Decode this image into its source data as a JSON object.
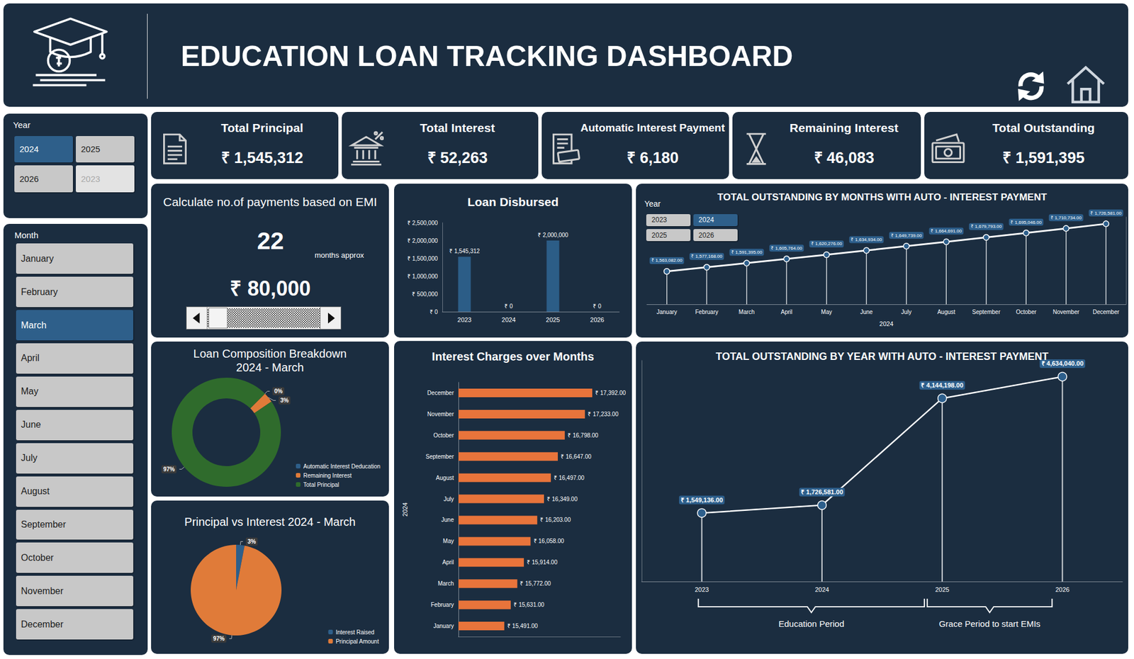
{
  "header": {
    "title": "EDUCATION LOAN TRACKING DASHBOARD"
  },
  "year_slicer": {
    "title": "Year",
    "items": [
      "2024",
      "2025",
      "2026",
      "2023"
    ],
    "selected": [
      "2024"
    ],
    "disabled": [
      "2023"
    ]
  },
  "month_slicer": {
    "title": "Month",
    "items": [
      "January",
      "February",
      "March",
      "April",
      "May",
      "June",
      "July",
      "August",
      "September",
      "October",
      "November",
      "December"
    ],
    "selected": [
      "March"
    ]
  },
  "kpis": [
    {
      "title": "Total Principal",
      "value": "₹ 1,545,312"
    },
    {
      "title": "Total Interest",
      "value": "₹ 52,263"
    },
    {
      "title": "Automatic Interest Payment",
      "value": "₹ 6,180"
    },
    {
      "title": "Remaining Interest",
      "value": "₹ 46,083"
    },
    {
      "title": "Total Outstanding",
      "value": "₹ 1,591,395"
    }
  ],
  "emi_calculator": {
    "title": "Calculate no.of payments based on EMI",
    "payments": 22,
    "payments_unit": "months approx",
    "emi": "₹ 80,000"
  },
  "chart_data": [
    {
      "type": "bar",
      "title": "Loan Disbursed",
      "categories": [
        "2023",
        "2024",
        "2025",
        "2026"
      ],
      "values": [
        1545312,
        0,
        2000000,
        0
      ],
      "value_labels": [
        "₹ 1,545,312",
        "₹ 0",
        "₹ 2,000,000",
        "₹ 0"
      ],
      "color": "#2c5d87",
      "ylim": [
        0,
        2500000
      ],
      "yticks": [
        {
          "value": 0,
          "label": "₹ 0"
        },
        {
          "value": 500000,
          "label": "₹ 500,000"
        },
        {
          "value": 1000000,
          "label": "₹ 1,000,000"
        },
        {
          "value": 1500000,
          "label": "₹ 1,500,000"
        },
        {
          "value": 2000000,
          "label": "₹ 2,000,000"
        },
        {
          "value": 2500000,
          "label": "₹ 2,500,000"
        }
      ],
      "grid": false,
      "data_labels": true
    },
    {
      "type": "line",
      "title": "TOTAL OUTSTANDING BY MONTHS WITH AUTO - INTEREST PAYMENT",
      "slicer": {
        "title": "Year",
        "items": [
          "2023",
          "2024",
          "2025",
          "2026"
        ],
        "selected": [
          "2024"
        ]
      },
      "xlabel": "2024",
      "categories": [
        "January",
        "February",
        "March",
        "April",
        "May",
        "June",
        "July",
        "August",
        "September",
        "October",
        "November",
        "December"
      ],
      "values": [
        1563082,
        1577168,
        1591395,
        1605764,
        1620276,
        1634934,
        1649739,
        1664691,
        1679793,
        1695046,
        1710734,
        1726581
      ],
      "value_labels": [
        "₹ 1,563,082.00",
        "₹ 1,577,168.00",
        "₹ 1,591,395.00",
        "₹ 1,605,764.00",
        "₹ 1,620,276.00",
        "₹ 1,634,934.00",
        "₹ 1,649,739.00",
        "₹ 1,664,691.00",
        "₹ 1,679,793.00",
        "₹ 1,695,046.00",
        "₹ 1,710,734.00",
        "₹ 1,726,581.00"
      ],
      "color": "#ffffff",
      "marker": "circle",
      "ylim": [
        1450000,
        1750000
      ],
      "grid": false,
      "tick_labels": "x",
      "data_labels": true
    },
    {
      "type": "donut",
      "title": "Loan Composition Breakdown",
      "subtitle": "2024 - March",
      "categories": [
        "Automatic Interest Deducation",
        "Remaining Interest",
        "Total Principal"
      ],
      "values": [
        0,
        3,
        97
      ],
      "value_labels": [
        "0%",
        "3%",
        "97%"
      ],
      "colors": [
        "#2e5f8a",
        "#e07b39",
        "#2f6b2c"
      ],
      "legend": "lower right",
      "data_labels": true
    },
    {
      "type": "pie",
      "title": "Principal vs Interest 2024 - March",
      "categories": [
        "Interest Raised",
        "Principal Amount"
      ],
      "values": [
        3,
        97
      ],
      "value_labels": [
        "3%",
        "97%"
      ],
      "colors": [
        "#2e5f8a",
        "#e07b39"
      ],
      "legend": "lower right",
      "data_labels": true
    },
    {
      "type": "bar",
      "orientation": "horizontal",
      "title": "Interest Charges over Months",
      "ylabel": "2024",
      "categories": [
        "January",
        "February",
        "March",
        "April",
        "May",
        "June",
        "July",
        "August",
        "September",
        "October",
        "November",
        "December"
      ],
      "values": [
        15491,
        15631,
        15772,
        15914,
        16058,
        16203,
        16349,
        16497,
        16647,
        16798,
        17233,
        17392
      ],
      "value_labels": [
        "₹ 15,491.00",
        "₹ 15,631.00",
        "₹ 15,772.00",
        "₹ 15,914.00",
        "₹ 16,058.00",
        "₹ 16,203.00",
        "₹ 16,349.00",
        "₹ 16,497.00",
        "₹ 16,647.00",
        "₹ 16,798.00",
        "₹ 17,233.00",
        "₹ 17,392.00"
      ],
      "color": "#e8743b",
      "xlim": [
        14500,
        18000
      ],
      "grid": false,
      "tick_labels": "y",
      "data_labels": true
    },
    {
      "type": "line",
      "title": "TOTAL OUTSTANDING BY YEAR WITH AUTO - INTEREST PAYMENT",
      "categories": [
        "2023",
        "2024",
        "2025",
        "2026"
      ],
      "values": [
        1549136,
        1726581,
        4144198,
        4634040
      ],
      "value_labels": [
        "₹ 1,549,136.00",
        "₹ 1,726,581.00",
        "₹ 4,144,198.00",
        "₹ 4,634,040.00"
      ],
      "color": "#ffffff",
      "marker": "circle",
      "ylim": [
        0,
        5000000
      ],
      "grid": false,
      "tick_labels": "x",
      "data_labels": true,
      "annotations": [
        {
          "text": "Education Period",
          "from": "2023",
          "to": "2025"
        },
        {
          "text": "Grace Period to start EMIs",
          "from": "2025",
          "to": "2026"
        }
      ]
    }
  ]
}
